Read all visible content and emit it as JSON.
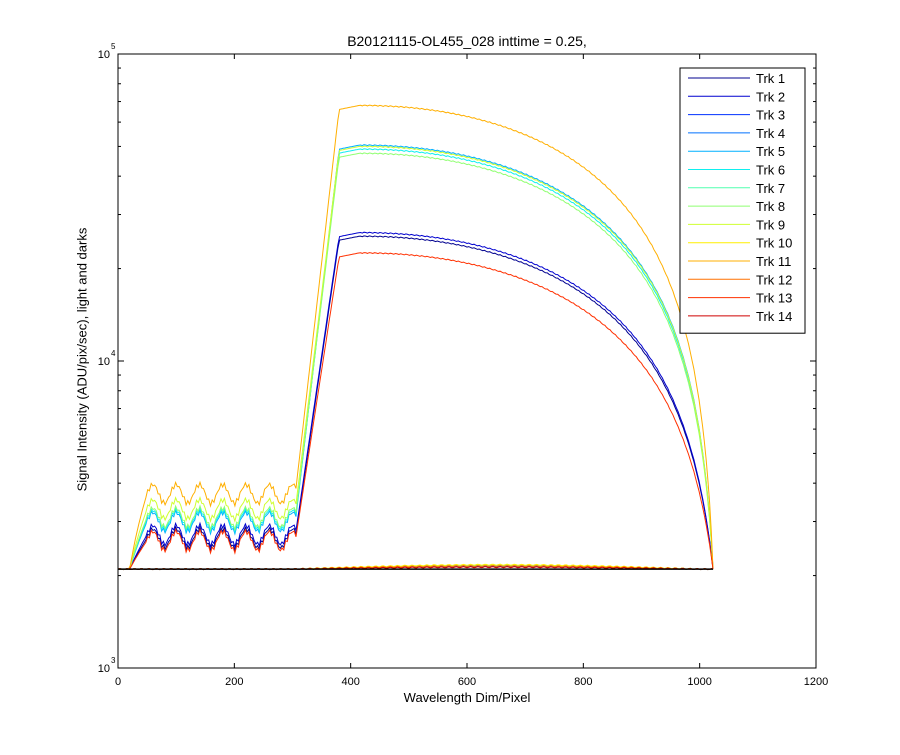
{
  "chart_data": {
    "type": "line",
    "title": "B20121115-OL455_028 inttime = 0.25,",
    "xlabel": "Wavelength Dim/Pixel",
    "ylabel": "Signal Intensity (ADU/pix/sec), light and darks",
    "xlim": [
      0,
      1200
    ],
    "ylim": [
      1000,
      100000
    ],
    "yscale": "log",
    "xticks": [
      "0",
      "200",
      "400",
      "600",
      "800",
      "1000",
      "1200"
    ],
    "yticks": [
      {
        "value": 1000,
        "base": "10",
        "exp": "3"
      },
      {
        "value": 10000,
        "base": "10",
        "exp": "4"
      },
      {
        "value": 100000,
        "base": "10",
        "exp": "5"
      }
    ],
    "grid": false,
    "legend_position": "top-right",
    "series": [
      {
        "name": "Trk 1",
        "color": "#00008f",
        "shape": "bright",
        "peak": 25500,
        "plateau": 2650
      },
      {
        "name": "Trk 2",
        "color": "#0000cf",
        "shape": "bright",
        "peak": 26200,
        "plateau": 2720
      },
      {
        "name": "Trk 3",
        "color": "#0030ff",
        "shape": "dark",
        "dark_level": 2140
      },
      {
        "name": "Trk 4",
        "color": "#0070ff",
        "shape": "dark",
        "dark_level": 2150
      },
      {
        "name": "Trk 5",
        "color": "#00b0ff",
        "shape": "bright",
        "peak": 50500,
        "plateau": 3000
      },
      {
        "name": "Trk 6",
        "color": "#10efef",
        "shape": "bright",
        "peak": 49000,
        "plateau": 3050
      },
      {
        "name": "Trk 7",
        "color": "#50ffaf",
        "shape": "dark",
        "dark_level": 2160
      },
      {
        "name": "Trk 8",
        "color": "#8fff70",
        "shape": "bright",
        "peak": 47500,
        "plateau": 3100
      },
      {
        "name": "Trk 9",
        "color": "#cfff30",
        "shape": "bright",
        "peak": 50000,
        "plateau": 3300
      },
      {
        "name": "Trk 10",
        "color": "#ffef00",
        "shape": "dark",
        "dark_level": 2170
      },
      {
        "name": "Trk 11",
        "color": "#ffaf00",
        "shape": "bright",
        "peak": 68000,
        "plateau": 3700
      },
      {
        "name": "Trk 12",
        "color": "#ff7000",
        "shape": "dark",
        "dark_level": 2150
      },
      {
        "name": "Trk 13",
        "color": "#ff3000",
        "shape": "bright",
        "peak": 22500,
        "plateau": 2600
      },
      {
        "name": "Trk 14",
        "color": "#cf0000",
        "shape": "dark",
        "dark_level": 2130
      }
    ],
    "baseline": 2100,
    "x_end": 1023
  }
}
